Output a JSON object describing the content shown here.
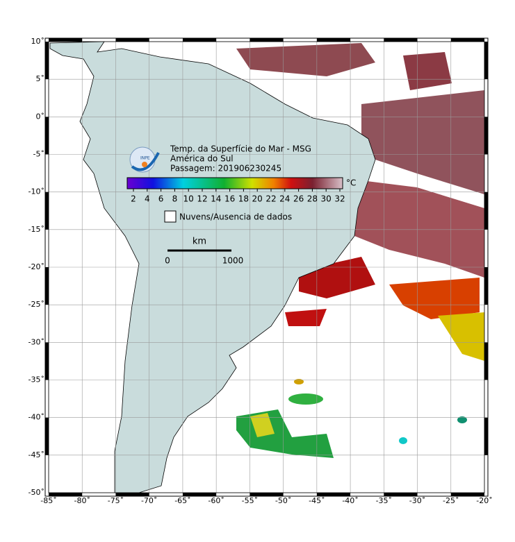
{
  "header": {
    "title": "Temp. da Superfície do Mar - MSG",
    "region": "América do Sul",
    "pass": "Passagem: 201906230245",
    "logo": "INPE"
  },
  "colorbar": {
    "unit": "°C",
    "ticks": [
      "2",
      "4",
      "6",
      "8",
      "10",
      "12",
      "14",
      "16",
      "18",
      "20",
      "22",
      "24",
      "26",
      "28",
      "30",
      "32"
    ]
  },
  "legend": {
    "label": "Nuvens/Ausencia de dados"
  },
  "scale_bar": {
    "unit": "km",
    "start": "0",
    "end": "1000"
  },
  "axes": {
    "lat_labels": [
      "10˚",
      "5˚",
      "0˚",
      "-5˚",
      "-10˚",
      "-15˚",
      "-20˚",
      "-25˚",
      "-30˚",
      "-35˚",
      "-40˚",
      "-45˚",
      "-50˚"
    ],
    "lon_labels": [
      "-85˚",
      "-80˚",
      "-75˚",
      "-70˚",
      "-65˚",
      "-60˚",
      "-55˚",
      "-50˚",
      "-45˚",
      "-40˚",
      "-35˚",
      "-30˚",
      "-25˚",
      "-20˚"
    ]
  }
}
